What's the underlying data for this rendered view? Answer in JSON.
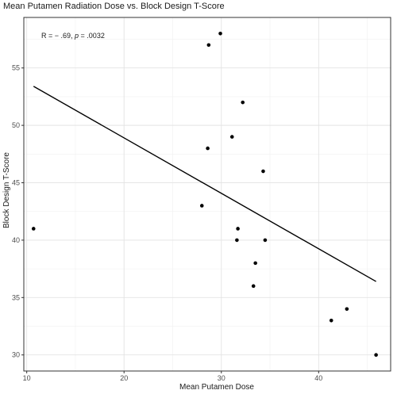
{
  "chart_data": {
    "type": "scatter",
    "title": "Mean Putamen Radiation Dose vs. Block Design T-Score",
    "xlabel": "Mean Putamen Dose",
    "ylabel": "Block Design T-Score",
    "xlim": [
      9.7,
      47.4
    ],
    "ylim": [
      28.6,
      59.4
    ],
    "x_ticks": [
      10,
      20,
      30,
      40
    ],
    "y_ticks": [
      30,
      35,
      40,
      45,
      50,
      55
    ],
    "grid": true,
    "annotation": {
      "text_prefix": "R = − .69, ",
      "p_label": "p",
      "text_suffix": " = .0032"
    },
    "points": [
      {
        "x": 10.7,
        "y": 41
      },
      {
        "x": 28.0,
        "y": 43
      },
      {
        "x": 28.6,
        "y": 48
      },
      {
        "x": 28.7,
        "y": 57
      },
      {
        "x": 29.9,
        "y": 58
      },
      {
        "x": 31.1,
        "y": 49
      },
      {
        "x": 31.6,
        "y": 40
      },
      {
        "x": 31.7,
        "y": 41
      },
      {
        "x": 32.2,
        "y": 52
      },
      {
        "x": 33.3,
        "y": 36
      },
      {
        "x": 33.5,
        "y": 38
      },
      {
        "x": 34.3,
        "y": 46
      },
      {
        "x": 34.5,
        "y": 40
      },
      {
        "x": 41.3,
        "y": 33
      },
      {
        "x": 42.9,
        "y": 34
      },
      {
        "x": 45.9,
        "y": 30
      }
    ],
    "trend_line": {
      "x": [
        10.7,
        45.9
      ],
      "y": [
        53.4,
        36.4
      ]
    }
  }
}
